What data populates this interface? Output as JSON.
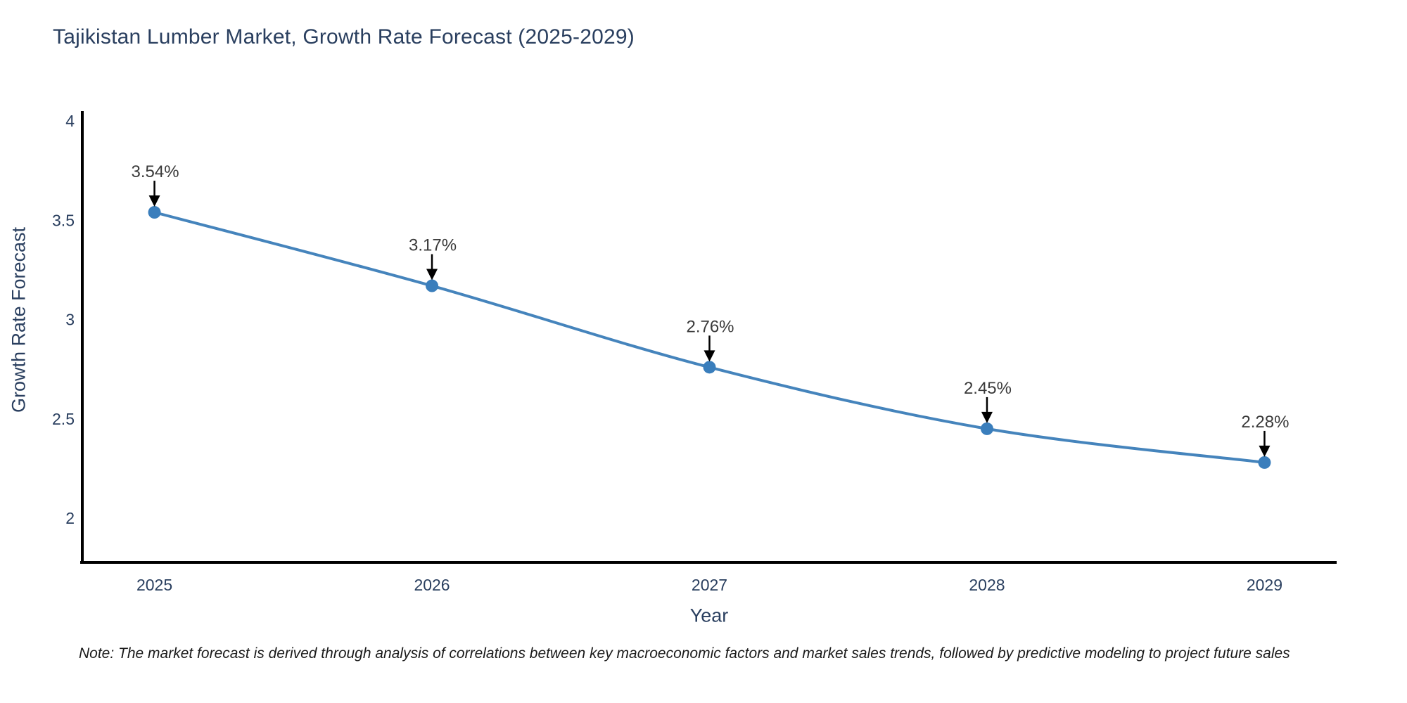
{
  "chart_data": {
    "type": "line",
    "title": "Tajikistan Lumber Market, Growth Rate Forecast (2025-2029)",
    "xlabel": "Year",
    "ylabel": "Growth Rate Forecast",
    "x": [
      2025,
      2026,
      2027,
      2028,
      2029
    ],
    "values": [
      3.54,
      3.17,
      2.76,
      2.45,
      2.28
    ],
    "point_labels": [
      "3.54%",
      "3.17%",
      "2.76%",
      "2.45%",
      "2.28%"
    ],
    "xticks": [
      [
        2025,
        "2025"
      ],
      [
        2026,
        "2026"
      ],
      [
        2027,
        "2027"
      ],
      [
        2028,
        "2028"
      ],
      [
        2029,
        "2029"
      ]
    ],
    "yticks": [
      [
        2,
        "2"
      ],
      [
        2.5,
        "2.5"
      ],
      [
        3,
        "3"
      ],
      [
        3.5,
        "3.5"
      ],
      [
        4,
        "4"
      ]
    ],
    "xlim": [
      2024.74,
      2029.26
    ],
    "ylim": [
      1.777,
      4.05
    ],
    "grid": false,
    "legend": "none",
    "line_shape": "spline",
    "colors": {
      "line": "#4584bc",
      "marker": "#3a7ebc",
      "axis_line": "#000000",
      "tick_text": "#2a3f5f",
      "annotation_text": "#3a3a3a",
      "annotation_arrow": "#000000"
    }
  },
  "note": "Note: The market forecast is derived through analysis of correlations between key macroeconomic factors and market sales trends, followed by predictive modeling to project future sales"
}
